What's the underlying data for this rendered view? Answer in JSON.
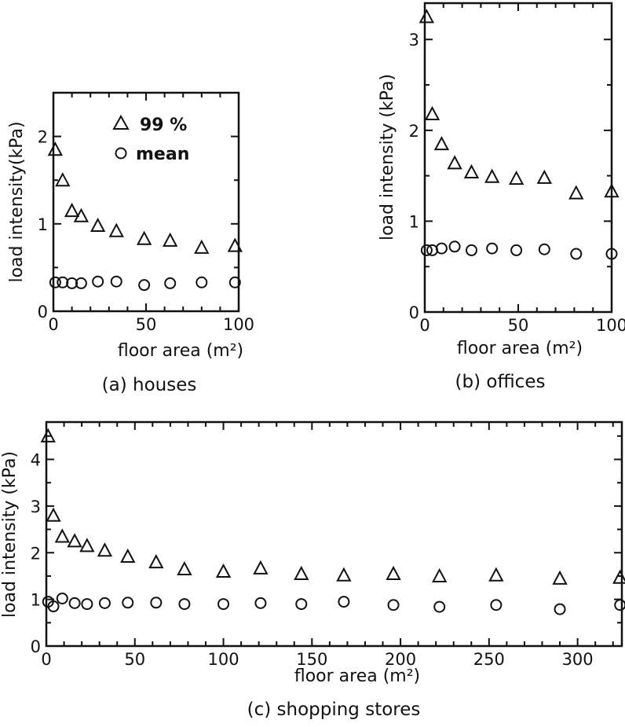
{
  "chart_data": [
    {
      "type": "scatter",
      "caption": "(a) houses",
      "xlabel": "floor area (m²)",
      "ylabel": "load intensity(kPa)",
      "xlim": [
        0,
        100
      ],
      "ylim": [
        0,
        2.5
      ],
      "x_ticks": [
        0,
        50,
        100
      ],
      "y_ticks": [
        0,
        1,
        2
      ],
      "legend": {
        "position": "top-right",
        "entries": [
          {
            "marker": "triangle",
            "label": "99 %"
          },
          {
            "marker": "circle",
            "label": "mean"
          }
        ]
      },
      "series": [
        {
          "name": "99 %",
          "marker": "triangle",
          "x": [
            1,
            5,
            10,
            15,
            24,
            34,
            49,
            63,
            80,
            98
          ],
          "y": [
            1.85,
            1.5,
            1.15,
            1.09,
            0.98,
            0.92,
            0.83,
            0.81,
            0.73,
            0.75
          ]
        },
        {
          "name": "mean",
          "marker": "circle",
          "x": [
            1,
            5,
            10,
            15,
            24,
            34,
            49,
            63,
            80,
            98
          ],
          "y": [
            0.33,
            0.33,
            0.32,
            0.32,
            0.34,
            0.34,
            0.3,
            0.32,
            0.33,
            0.33
          ]
        }
      ]
    },
    {
      "type": "scatter",
      "caption": "(b) offices",
      "xlabel": "floor area (m²)",
      "ylabel": "load intensity (kPa)",
      "xlim": [
        0,
        100
      ],
      "ylim": [
        0,
        3.4
      ],
      "x_ticks": [
        0,
        50,
        100
      ],
      "y_ticks": [
        0,
        1,
        2,
        3
      ],
      "series": [
        {
          "name": "99 %",
          "marker": "triangle",
          "x": [
            1,
            4,
            9,
            16,
            25,
            36,
            49,
            64,
            81,
            100
          ],
          "y": [
            3.25,
            2.18,
            1.85,
            1.64,
            1.54,
            1.49,
            1.47,
            1.48,
            1.31,
            1.33
          ]
        },
        {
          "name": "mean",
          "marker": "circle",
          "x": [
            1,
            4,
            9,
            16,
            25,
            36,
            49,
            64,
            81,
            100
          ],
          "y": [
            0.68,
            0.68,
            0.7,
            0.72,
            0.68,
            0.7,
            0.68,
            0.69,
            0.64,
            0.64
          ]
        }
      ]
    },
    {
      "type": "scatter",
      "caption": "(c) shopping stores",
      "xlabel": "floor area (m²)",
      "ylabel": "load intensity (kPa)",
      "xlim": [
        0,
        325
      ],
      "ylim": [
        0,
        4.8
      ],
      "x_ticks": [
        0,
        50,
        100,
        150,
        200,
        250,
        300
      ],
      "y_ticks": [
        0,
        1,
        2,
        3,
        4
      ],
      "series": [
        {
          "name": "99 %",
          "marker": "triangle",
          "x": [
            1,
            4,
            9,
            16,
            23,
            33,
            46,
            62,
            78,
            100,
            121,
            144,
            168,
            196,
            222,
            254,
            290,
            324
          ],
          "y": [
            4.5,
            2.8,
            2.35,
            2.25,
            2.15,
            2.05,
            1.92,
            1.8,
            1.65,
            1.6,
            1.67,
            1.55,
            1.52,
            1.55,
            1.5,
            1.52,
            1.45,
            1.47
          ]
        },
        {
          "name": "mean",
          "marker": "circle",
          "x": [
            1,
            4,
            9,
            16,
            23,
            33,
            46,
            62,
            78,
            100,
            121,
            144,
            168,
            196,
            222,
            254,
            290,
            324
          ],
          "y": [
            0.95,
            0.85,
            1.02,
            0.92,
            0.9,
            0.92,
            0.93,
            0.93,
            0.9,
            0.9,
            0.92,
            0.9,
            0.95,
            0.88,
            0.84,
            0.88,
            0.79,
            0.88
          ]
        }
      ]
    }
  ]
}
